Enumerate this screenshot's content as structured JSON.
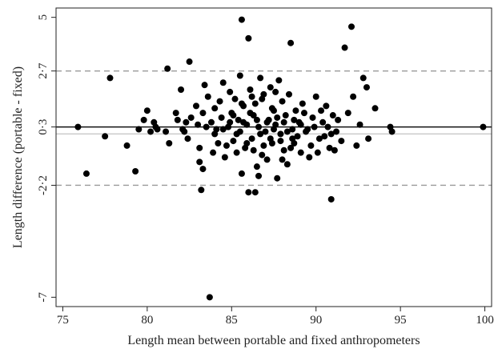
{
  "chart_data": {
    "type": "scatter",
    "title": "",
    "xlabel": "Length mean between portable and fixed anthropometers",
    "ylabel": "Length difference (portable - fixed)",
    "xlim": [
      74.6,
      100.4
    ],
    "ylim": [
      -7.4,
      5.4
    ],
    "xticks": [
      75,
      80,
      85,
      90,
      95,
      100
    ],
    "xtick_labels": [
      "75",
      "80",
      "85",
      "90",
      "95",
      "100"
    ],
    "yticks": [
      -7,
      -2.2,
      0.3,
      2.7,
      5
    ],
    "ytick_labels": [
      "-7",
      "-2·2",
      "0·3",
      "2·7",
      "5"
    ],
    "reference_lines": [
      {
        "name": "zero",
        "y": 0,
        "style": "solid",
        "color": "#c8c8c8"
      },
      {
        "name": "mean-difference",
        "y": 0.3,
        "style": "solid",
        "color": "#111111"
      },
      {
        "name": "upper-limit",
        "y": 2.7,
        "style": "dashed",
        "color": "#9a9a9a"
      },
      {
        "name": "lower-limit",
        "y": -2.2,
        "style": "dashed",
        "color": "#9a9a9a"
      }
    ],
    "grid": false,
    "legend": "none",
    "point_color": "#000000",
    "points": [
      [
        75.9,
        0.3
      ],
      [
        76.4,
        -1.7
      ],
      [
        77.5,
        -0.1
      ],
      [
        77.8,
        2.4
      ],
      [
        78.8,
        -0.5
      ],
      [
        79.3,
        -1.6
      ],
      [
        79.5,
        0.2
      ],
      [
        79.8,
        0.6
      ],
      [
        80.0,
        1.0
      ],
      [
        80.2,
        0.1
      ],
      [
        80.4,
        0.5
      ],
      [
        80.5,
        0.3
      ],
      [
        80.6,
        0.2
      ],
      [
        81.1,
        0.1
      ],
      [
        81.2,
        2.8
      ],
      [
        81.3,
        -0.4
      ],
      [
        81.7,
        0.9
      ],
      [
        81.8,
        0.6
      ],
      [
        82.1,
        0.2
      ],
      [
        82.2,
        0.1
      ],
      [
        82.0,
        1.9
      ],
      [
        82.3,
        0.5
      ],
      [
        82.4,
        -0.2
      ],
      [
        82.5,
        3.1
      ],
      [
        82.6,
        0.7
      ],
      [
        82.9,
        1.2
      ],
      [
        83.0,
        0.4
      ],
      [
        83.1,
        -0.6
      ],
      [
        83.1,
        -1.2
      ],
      [
        83.2,
        -2.4
      ],
      [
        83.3,
        -1.5
      ],
      [
        83.3,
        0.9
      ],
      [
        83.4,
        2.1
      ],
      [
        83.6,
        1.6
      ],
      [
        83.7,
        -7.0
      ],
      [
        83.8,
        0.5
      ],
      [
        83.9,
        -0.8
      ],
      [
        84.0,
        1.1
      ],
      [
        84.1,
        0.2
      ],
      [
        84.2,
        -0.4
      ],
      [
        84.3,
        1.4
      ],
      [
        84.4,
        0.7
      ],
      [
        84.5,
        2.2
      ],
      [
        84.6,
        -1.0
      ],
      [
        84.8,
        0.3
      ],
      [
        84.9,
        1.8
      ],
      [
        85.0,
        0.9
      ],
      [
        85.1,
        -0.3
      ],
      [
        85.2,
        1.5
      ],
      [
        85.3,
        0.0
      ],
      [
        85.4,
        0.6
      ],
      [
        85.5,
        2.5
      ],
      [
        85.6,
        -1.7
      ],
      [
        85.6,
        4.9
      ],
      [
        85.7,
        1.2
      ],
      [
        85.8,
        -0.6
      ],
      [
        85.9,
        0.4
      ],
      [
        86.0,
        -2.5
      ],
      [
        86.0,
        4.1
      ],
      [
        86.1,
        1.9
      ],
      [
        86.2,
        -0.2
      ],
      [
        86.3,
        0.8
      ],
      [
        86.4,
        -2.5
      ],
      [
        86.4,
        1.3
      ],
      [
        86.5,
        -1.4
      ],
      [
        86.6,
        0.3
      ],
      [
        86.7,
        2.4
      ],
      [
        86.8,
        -0.9
      ],
      [
        86.9,
        1.7
      ],
      [
        87.0,
        0.1
      ],
      [
        87.1,
        -1.1
      ],
      [
        87.2,
        0.6
      ],
      [
        87.3,
        2.0
      ],
      [
        87.4,
        -0.4
      ],
      [
        87.5,
        1.0
      ],
      [
        87.6,
        0.4
      ],
      [
        87.7,
        -1.9
      ],
      [
        87.8,
        2.3
      ],
      [
        87.9,
        0.0
      ],
      [
        88.0,
        1.4
      ],
      [
        88.1,
        -0.7
      ],
      [
        88.2,
        0.8
      ],
      [
        88.3,
        -1.3
      ],
      [
        88.4,
        1.7
      ],
      [
        88.5,
        3.9
      ],
      [
        88.6,
        0.2
      ],
      [
        88.7,
        -0.4
      ],
      [
        88.8,
        1.0
      ],
      [
        89.0,
        0.5
      ],
      [
        89.1,
        -0.8
      ],
      [
        89.2,
        1.3
      ],
      [
        89.4,
        0.1
      ],
      [
        89.6,
        -1.0
      ],
      [
        89.8,
        0.7
      ],
      [
        90.0,
        1.6
      ],
      [
        90.2,
        -0.2
      ],
      [
        90.4,
        0.5
      ],
      [
        90.6,
        1.2
      ],
      [
        90.8,
        -0.6
      ],
      [
        90.9,
        -2.8
      ],
      [
        91.0,
        0.8
      ],
      [
        91.2,
        0.1
      ],
      [
        91.5,
        -0.3
      ],
      [
        91.7,
        3.7
      ],
      [
        91.9,
        0.9
      ],
      [
        92.1,
        4.6
      ],
      [
        92.2,
        1.6
      ],
      [
        92.4,
        -0.5
      ],
      [
        92.6,
        0.4
      ],
      [
        92.8,
        2.4
      ],
      [
        93.0,
        2.0
      ],
      [
        93.1,
        -0.2
      ],
      [
        93.5,
        1.1
      ],
      [
        94.4,
        0.3
      ],
      [
        94.5,
        0.1
      ],
      [
        99.9,
        0.3
      ],
      [
        84.5,
        0.2
      ],
      [
        84.7,
        -0.5
      ],
      [
        84.9,
        0.5
      ],
      [
        85.1,
        0.8
      ],
      [
        85.3,
        -0.8
      ],
      [
        85.5,
        0.1
      ],
      [
        85.7,
        0.5
      ],
      [
        85.9,
        -0.4
      ],
      [
        86.1,
        0.9
      ],
      [
        86.3,
        -0.7
      ],
      [
        86.5,
        0.6
      ],
      [
        86.7,
        0.0
      ],
      [
        86.9,
        -0.5
      ],
      [
        87.1,
        0.5
      ],
      [
        87.3,
        -0.2
      ],
      [
        87.5,
        0.2
      ],
      [
        87.7,
        0.7
      ],
      [
        87.9,
        -0.3
      ],
      [
        88.1,
        0.5
      ],
      [
        88.3,
        0.1
      ],
      [
        88.5,
        -0.6
      ],
      [
        88.7,
        0.6
      ],
      [
        88.9,
        -0.1
      ],
      [
        89.1,
        0.4
      ],
      [
        89.3,
        0.9
      ],
      [
        89.5,
        0.2
      ],
      [
        89.7,
        -0.5
      ],
      [
        89.9,
        0.3
      ],
      [
        90.1,
        -0.8
      ],
      [
        90.3,
        1.0
      ],
      [
        90.5,
        -0.1
      ],
      [
        90.7,
        0.3
      ],
      [
        90.9,
        0.0
      ],
      [
        91.1,
        -0.7
      ],
      [
        91.3,
        0.6
      ],
      [
        86.2,
        1.6
      ],
      [
        86.8,
        1.5
      ],
      [
        87.4,
        1.1
      ],
      [
        88.0,
        -1.1
      ],
      [
        88.6,
        -0.2
      ],
      [
        85.6,
        1.3
      ],
      [
        86.6,
        -1.8
      ],
      [
        87.6,
        1.8
      ],
      [
        84.0,
        0.0
      ],
      [
        83.5,
        0.3
      ]
    ]
  }
}
